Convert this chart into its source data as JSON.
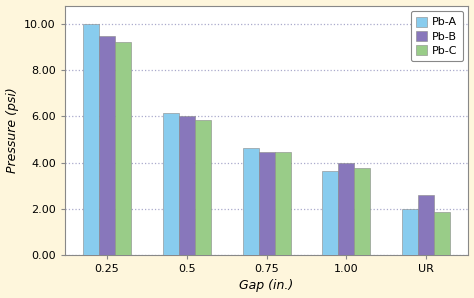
{
  "categories": [
    "0.25",
    "0.5",
    "0.75",
    "1.00",
    "UR"
  ],
  "series": {
    "Pb-A": [
      10.0,
      6.15,
      4.65,
      3.65,
      2.0
    ],
    "Pb-B": [
      9.5,
      6.0,
      4.45,
      4.0,
      2.6
    ],
    "Pb-C": [
      9.2,
      5.85,
      4.45,
      3.75,
      1.85
    ]
  },
  "colors": {
    "Pb-A": "#88CCEE",
    "Pb-B": "#8877BB",
    "Pb-C": "#99CC88"
  },
  "xlabel": "Gap (in.)",
  "ylabel": "Pressure (psi)",
  "ylim": [
    0,
    10.8
  ],
  "yticks": [
    0.0,
    2.0,
    4.0,
    6.0,
    8.0,
    10.0
  ],
  "ytick_labels": [
    "0.00",
    "2.00",
    "4.00",
    "6.00",
    "8.00",
    "10.00"
  ],
  "background_color": "#FEF6DC",
  "plot_bg_color": "#FFFFFF",
  "grid_color": "#AAAACC",
  "bar_width": 0.2,
  "legend_fontsize": 8,
  "axis_fontsize": 8,
  "label_fontsize": 9
}
